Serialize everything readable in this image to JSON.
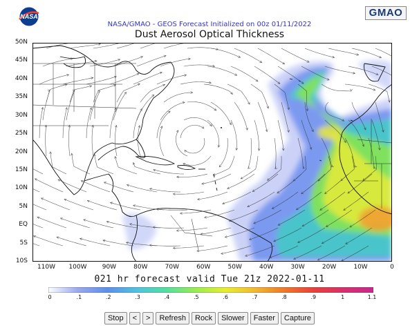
{
  "header": {
    "subtitle": "NASA/GMAO - GEOS Forecast Initialized on 00z 01/11/2022",
    "title": "Dust Aerosol Optical Thickness",
    "gmao_logo": "GMAO",
    "nasa_logo": "NASA"
  },
  "map": {
    "lat_labels": [
      "50N",
      "45N",
      "40N",
      "35N",
      "30N",
      "25N",
      "20N",
      "15N",
      "10N",
      "5N",
      "EQ",
      "5S",
      "10S"
    ],
    "lon_labels": [
      "110W",
      "100W",
      "90W",
      "80W",
      "70W",
      "60W",
      "50W",
      "40W",
      "30W",
      "20W",
      "10W",
      "0"
    ]
  },
  "valid_text": "021 hr forecast valid Tue 21z 2022-01-11",
  "colorbar": {
    "ticks": [
      "0",
      ".1",
      ".2",
      ".3",
      ".4",
      ".5",
      ".6",
      ".7",
      ".8",
      ".9",
      "1",
      "1.1"
    ],
    "colors": [
      "#ffffff",
      "#9aa8f0",
      "#5c8ff0",
      "#4fc4e0",
      "#52e0a0",
      "#9aee50",
      "#e8ee30",
      "#f4b830",
      "#f07828",
      "#e8403c",
      "#d8306c",
      "#c82890"
    ]
  },
  "controls": {
    "stop": "Stop",
    "prev": "<",
    "next": ">",
    "refresh": "Refresh",
    "rock": "Rock",
    "slower": "Slower",
    "faster": "Faster",
    "capture": "Capture"
  }
}
